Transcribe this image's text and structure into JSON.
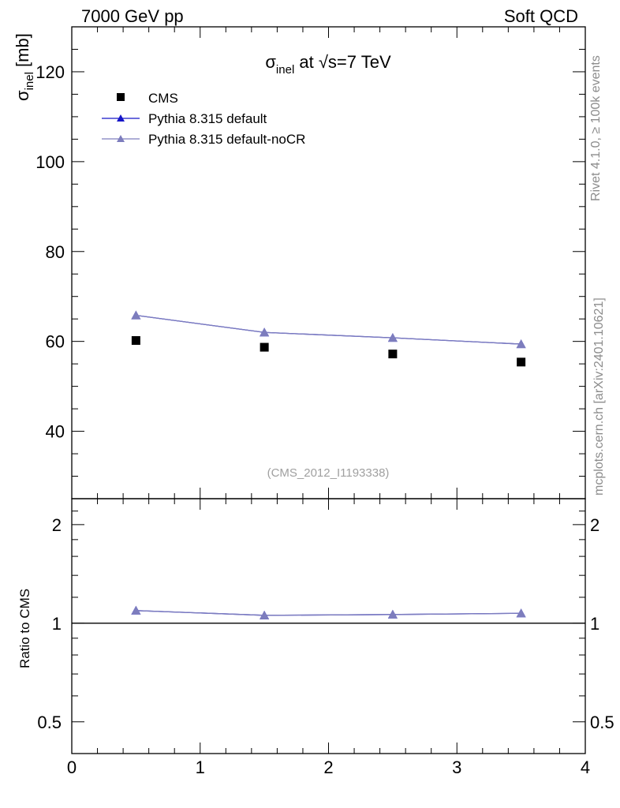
{
  "header": {
    "left_label": "7000 GeV pp",
    "right_label": "Soft QCD"
  },
  "side": {
    "rivet_label": "Rivet 4.1.0, ≥ 100k events",
    "mcplots_label": "mcplots.cern.ch [arXiv:2401.10621]"
  },
  "chart_data": [
    {
      "type": "scatter",
      "panel": "main",
      "title": {
        "sigma": "σ",
        "sub": "inel",
        "rest": " at √s=7 TeV"
      },
      "ylabel": {
        "sigma": "σ",
        "sub": "inel",
        "rest": " [mb]"
      },
      "xlabel": "",
      "xlim": [
        0,
        4
      ],
      "ylim": [
        25,
        130
      ],
      "x_ticks": [
        0,
        1,
        2,
        3,
        4
      ],
      "y_ticks": [
        40,
        60,
        80,
        100,
        120
      ],
      "y_tick_labels": [
        "40",
        "60",
        "80",
        "100",
        "120"
      ],
      "annotation": "(CMS_2012_I1193338)",
      "legend_position": "top-left",
      "x": [
        0.5,
        1.5,
        2.5,
        3.5
      ],
      "series": [
        {
          "name": "CMS",
          "style": "marker",
          "marker": "square",
          "color": "#000000",
          "values": [
            60.2,
            58.7,
            57.2,
            55.4
          ]
        },
        {
          "name": "Pythia 8.315 default",
          "style": "line+marker",
          "marker": "triangle",
          "color": "#1515c8",
          "values": [
            65.8,
            62.0,
            60.8,
            59.4
          ]
        },
        {
          "name": "Pythia 8.315 default-noCR",
          "style": "line+marker",
          "marker": "triangle",
          "color": "#7d7dbd",
          "values": [
            65.8,
            62.0,
            60.8,
            59.4
          ]
        }
      ]
    },
    {
      "type": "line",
      "panel": "ratio",
      "ylabel": "Ratio to CMS",
      "xlim": [
        0,
        4
      ],
      "ylim": [
        0.4,
        2.4
      ],
      "x_ticks": [
        0,
        1,
        2,
        3,
        4
      ],
      "x_tick_labels": [
        "0",
        "1",
        "2",
        "3",
        "4"
      ],
      "y_ticks": [
        0.5,
        1,
        2
      ],
      "y_tick_labels": [
        "0.5",
        "1",
        "2"
      ],
      "reference": 1,
      "x": [
        0.5,
        1.5,
        2.5,
        3.5
      ],
      "series": [
        {
          "name": "Pythia 8.315 default",
          "marker": "triangle",
          "color": "#1515c8",
          "values": [
            1.093,
            1.057,
            1.063,
            1.072
          ]
        },
        {
          "name": "Pythia 8.315 default-noCR",
          "marker": "triangle",
          "color": "#7d7dbd",
          "values": [
            1.093,
            1.057,
            1.063,
            1.072
          ]
        }
      ]
    }
  ]
}
